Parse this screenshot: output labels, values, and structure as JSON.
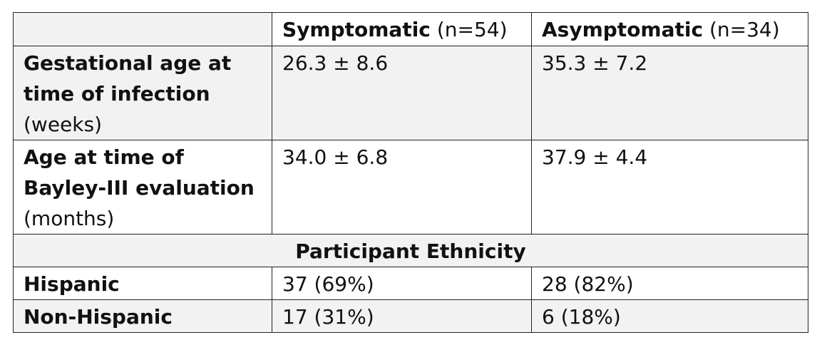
{
  "header": {
    "symptomatic_label": "Symptomatic",
    "symptomatic_n": "(n=54)",
    "asymptomatic_label": "Asymptomatic",
    "asymptomatic_n": "(n=34)"
  },
  "rows": [
    {
      "label_bold": "Gestational age at time of infection",
      "label_unit": "(weeks)",
      "symptomatic": "26.3 ± 8.6",
      "asymptomatic": "35.3 ± 7.2"
    },
    {
      "label_bold": "Age at time of Bayley-III evaluation",
      "label_unit": "(months)",
      "symptomatic": "34.0 ± 6.8",
      "asymptomatic": "37.9 ± 4.4"
    }
  ],
  "section_title": "Participant Ethnicity",
  "ethnicity": [
    {
      "label": "Hispanic",
      "symptomatic": "37 (69%)",
      "asymptomatic": "28 (82%)"
    },
    {
      "label": "Non-Hispanic",
      "symptomatic": "17 (31%)",
      "asymptomatic": "6 (18%)"
    }
  ]
}
